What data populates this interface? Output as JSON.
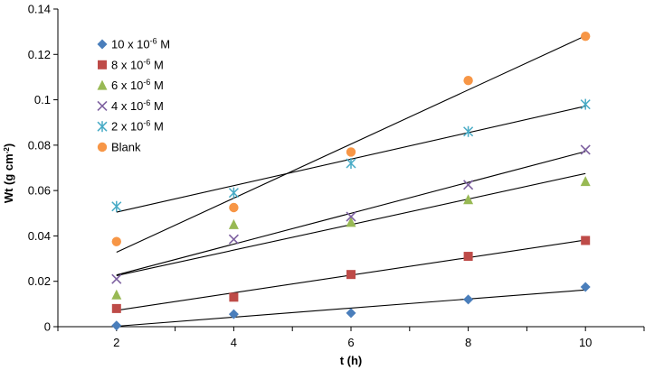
{
  "chart_data": {
    "type": "scatter",
    "xlabel": "t (h)",
    "ylabel": "Wt (g cm",
    "ylabel_sup": "-2",
    "ylabel_close": ")",
    "xlim": [
      1,
      11
    ],
    "ylim": [
      0,
      0.14
    ],
    "xticks": [
      "2",
      "4",
      "6",
      "8",
      "10"
    ],
    "yticks": [
      "0",
      "0.02",
      "0.04",
      "0.06",
      "0.08",
      "0.1",
      "0.12",
      "0.14"
    ],
    "grid": false,
    "legend_position": "top-left",
    "x": [
      2,
      4,
      6,
      8,
      10
    ],
    "series": [
      {
        "name": "10 x 10",
        "name_sup": "-6",
        "name_suffix": " M",
        "marker": "diamond",
        "color": "#4a7ebb",
        "values": [
          0.0005,
          0.0055,
          0.006,
          0.012,
          0.0175
        ],
        "fit": [
          0.0002,
          0.0162
        ]
      },
      {
        "name": "8 x 10",
        "name_sup": "-6",
        "name_suffix": " M",
        "marker": "square",
        "color": "#be4b48",
        "values": [
          0.008,
          0.013,
          0.023,
          0.031,
          0.038
        ],
        "fit": [
          0.0072,
          0.0382
        ]
      },
      {
        "name": "6 x 10",
        "name_sup": "-6",
        "name_suffix": " M",
        "marker": "triangle",
        "color": "#98b954",
        "values": [
          0.014,
          0.045,
          0.046,
          0.056,
          0.064
        ],
        "fit": [
          0.0225,
          0.0675
        ]
      },
      {
        "name": "4 x 10",
        "name_sup": "-6",
        "name_suffix": " M",
        "marker": "x",
        "color": "#7d60a0",
        "values": [
          0.021,
          0.0385,
          0.0485,
          0.0625,
          0.078
        ],
        "fit": [
          0.0228,
          0.0772
        ]
      },
      {
        "name": "2 x 10",
        "name_sup": "-6",
        "name_suffix": " M",
        "marker": "star",
        "color": "#46aac5",
        "values": [
          0.053,
          0.059,
          0.072,
          0.086,
          0.098
        ],
        "fit": [
          0.0505,
          0.0972
        ]
      },
      {
        "name": "Blank",
        "name_sup": "",
        "name_suffix": "",
        "marker": "circle",
        "color": "#f79646",
        "values": [
          0.0375,
          0.0525,
          0.077,
          0.1085,
          0.128
        ],
        "fit": [
          0.0328,
          0.1282
        ]
      }
    ]
  }
}
